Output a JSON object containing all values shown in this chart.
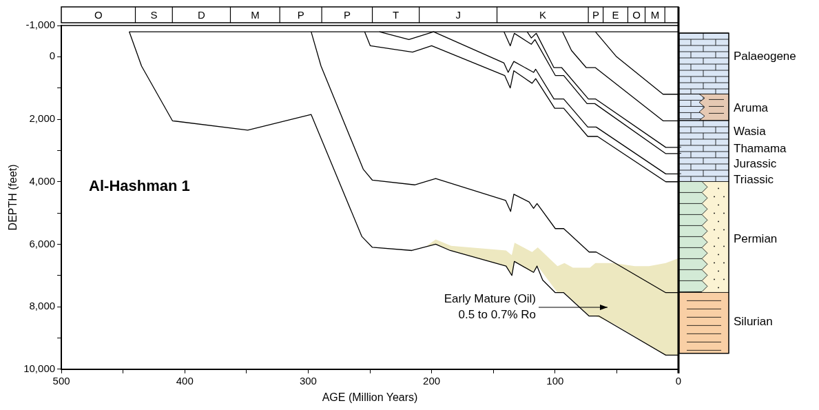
{
  "chart_data": {
    "type": "line",
    "xlabel": "AGE (Million Years)",
    "ylabel": "DEPTH (feet)",
    "xlim": [
      500,
      0
    ],
    "ylim": [
      10000,
      -1000
    ],
    "xticks": [
      500,
      {
        "value": 450,
        "label": null
      },
      400,
      {
        "value": 350,
        "label": null
      },
      300,
      {
        "value": 250,
        "label": null
      },
      200,
      {
        "value": 150,
        "label": null
      },
      100,
      {
        "value": 50,
        "label": null
      },
      0
    ],
    "yticks": [
      {
        "value": -1000,
        "label": "-1,000"
      },
      0,
      {
        "value": 1000,
        "label": null
      },
      {
        "value": 2000,
        "label": "2,000"
      },
      {
        "value": 3000,
        "label": null
      },
      {
        "value": 4000,
        "label": "4,000"
      },
      {
        "value": 5000,
        "label": null
      },
      {
        "value": 6000,
        "label": "6,000"
      },
      {
        "value": 7000,
        "label": null
      },
      {
        "value": 8000,
        "label": "8,000"
      },
      {
        "value": 9000,
        "label": null
      },
      {
        "value": 10000,
        "label": "10,000"
      }
    ],
    "grid": false,
    "legend": false,
    "marker": "none",
    "line_style": "solid",
    "annotations": [
      "Al-Hashman 1",
      "Early Mature (Oil)\n0.5 to 0.7% Ro",
      "O",
      "S",
      "D",
      "M",
      "P",
      "P",
      "T",
      "J",
      "K",
      "P",
      "E",
      "O",
      "M",
      "Palaeogene",
      "Aruma",
      "Wasia",
      "Thamama",
      "Jurassic",
      "Triassic",
      "Permian",
      "Silurian"
    ],
    "series": [
      {
        "type": "area",
        "color": "#ede8c0",
        "x": [
          204,
          196.7,
          184.2,
          139.7,
          135.1,
          132.8,
          118.6,
          114,
          98,
          92.4,
          85.5,
          71.8,
          67.3,
          52.5,
          35.3,
          23.9,
          10.3,
          0,
          0
        ],
        "values": [
          null,
          null,
          null,
          null,
          null,
          null,
          null,
          null,
          null,
          null,
          null,
          null,
          null,
          null,
          null,
          null,
          null,
          null,
          null
        ],
        "upper": [
          6050,
          5850,
          6050,
          6200,
          6350,
          5950,
          6250,
          6100,
          6700,
          6600,
          6750,
          6750,
          6600,
          6600,
          6700,
          6700,
          6600,
          6450,
          6450
        ],
        "lower": [
          6050,
          6000,
          6200,
          6700,
          7000,
          6550,
          6900,
          6700,
          7550,
          7550,
          7800,
          8300,
          8300,
          8550,
          8950,
          9250,
          9550,
          9550,
          6450
        ]
      },
      {
        "color": "#000000",
        "x": [
          445,
          0
        ],
        "values": [
          -800,
          -800
        ]
      },
      {
        "color": "#000000",
        "x": [
          445,
          435,
          410,
          349,
          297.6,
          256.6,
          248,
          216,
          196.7,
          185,
          139.7,
          135,
          133,
          117.4,
          114.6,
          110,
          99.8,
          93,
          72.4,
          64.4,
          10.3,
          0
        ],
        "values": [
          -800,
          300,
          2050,
          2350,
          1850,
          5750,
          6100,
          6200,
          6000,
          6200,
          6700,
          7000,
          6550,
          6900,
          6700,
          7150,
          7550,
          7550,
          8300,
          8300,
          9550,
          9550
        ]
      },
      {
        "color": "#000000",
        "x": [
          297.6,
          289.6,
          255.4,
          248,
          213.8,
          196.7,
          140,
          136,
          133.4,
          121,
          117.4,
          114.6,
          99.8,
          93,
          72.4,
          66.7,
          10.3,
          0
        ],
        "values": [
          -800,
          300,
          3600,
          3950,
          4100,
          3900,
          4600,
          4950,
          4400,
          4650,
          4850,
          4700,
          5500,
          5500,
          6250,
          6250,
          7550,
          7550
        ]
      },
      {
        "color": "#000000",
        "x": [
          254.3,
          249.7,
          215.5,
          200,
          140.8,
          136.3,
          133.4,
          118.6,
          115.7,
          100.3,
          93,
          73.5,
          65.6,
          10.3,
          0
        ],
        "values": [
          -800,
          -350,
          -150,
          -350,
          600,
          1000,
          450,
          850,
          700,
          1650,
          1650,
          2550,
          2550,
          4000,
          4000
        ]
      },
      {
        "color": "#000000",
        "x": [
          242.3,
          218.4,
          198.4,
          141.4,
          138,
          133.4,
          117.4,
          115.7,
          100.9,
          93,
          73.5,
          66.7,
          10.3,
          0
        ],
        "values": [
          -800,
          -550,
          -800,
          200,
          500,
          150,
          500,
          400,
          1350,
          1350,
          2250,
          2250,
          3750,
          3750
        ]
      },
      {
        "color": "#000000",
        "x": [
          141.4,
          136.3,
          133,
          119.2,
          116.3,
          99.8,
          93,
          74.1,
          67.8,
          10.3,
          0
        ],
        "values": [
          -800,
          -350,
          -750,
          -400,
          -550,
          600,
          600,
          1500,
          1500,
          3100,
          3100
        ]
      },
      {
        "color": "#000000",
        "x": [
          122.6,
          119.2,
          115.2,
          100.9,
          94.6,
          73,
          67.3,
          10.3,
          0
        ],
        "values": [
          -800,
          -600,
          -750,
          350,
          350,
          1350,
          1350,
          2900,
          2900
        ]
      },
      {
        "color": "#000000",
        "x": [
          94,
          86.7,
          74.7,
          67.3,
          12.5,
          0
        ],
        "values": [
          -800,
          -200,
          350,
          350,
          2050,
          2050
        ]
      },
      {
        "color": "#000000",
        "x": [
          67.3,
          50.2,
          12.5,
          0
        ],
        "values": [
          -800,
          0,
          1200,
          1200
        ]
      }
    ]
  }
}
